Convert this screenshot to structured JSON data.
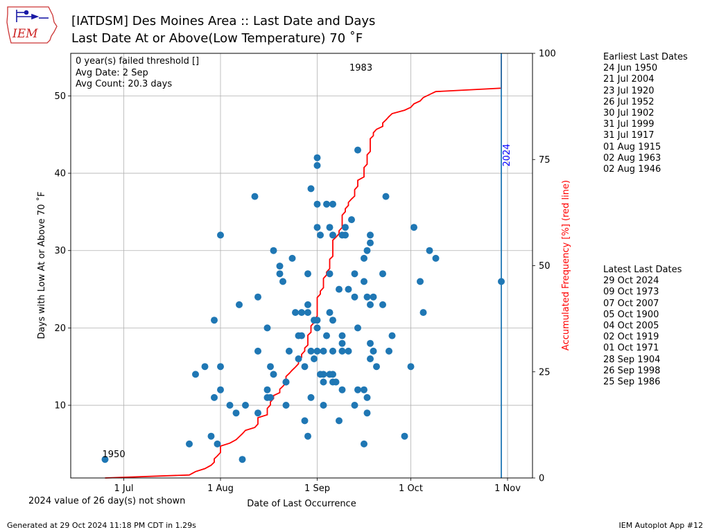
{
  "header": {
    "logo_text": "IEM",
    "title_line1": "[IATDSM] Des Moines Area :: Last Date and Days",
    "title_line2": "Last Date At or Above(Low Temperature) 70 ˚F"
  },
  "stats": {
    "failed": "0 year(s) failed threshold []",
    "avg_date": "Avg Date: 2 Sep",
    "avg_count": "Avg Count: 20.3 days"
  },
  "earliest": {
    "title": "Earliest Last Dates",
    "items": [
      "24 Jun 1950",
      "21 Jul 2004",
      "23 Jul 1920",
      "26 Jul 1952",
      "30 Jul 1902",
      "31 Jul 1999",
      "31 Jul 1917",
      "01 Aug 1915",
      "02 Aug 1963",
      "02 Aug 1946"
    ]
  },
  "latest": {
    "title": "Latest Last Dates",
    "items": [
      "29 Oct 2024",
      "09 Oct 1973",
      "07 Oct 2007",
      "05 Oct 1900",
      "04 Oct 2005",
      "02 Oct 1919",
      "01 Oct 1971",
      "28 Sep 1904",
      "26 Sep 1998",
      "25 Sep 1986"
    ]
  },
  "note_2024": "2024 value of 26 day(s) not shown",
  "footer": {
    "left": "Generated at 29 Oct 2024 11:18 PM CDT in 1.29s",
    "right": "IEM Autoplot App #12"
  },
  "chart_data": {
    "type": "scatter",
    "xlabel": "Date of Last Occurrence",
    "ylabel": "Days with Low At or Above 70 ˚F",
    "y2label": "Accumulated Frequency [%] (red line)",
    "x_ticks": [
      "1 Jul",
      "1 Aug",
      "1 Sep",
      "1 Oct",
      "1 Nov"
    ],
    "x_ticks_doy": [
      182,
      213,
      244,
      274,
      305
    ],
    "xlim_doy": [
      165,
      313
    ],
    "ylim": [
      0.6,
      55.5
    ],
    "y_ticks": [
      10,
      20,
      30,
      40,
      50
    ],
    "y2lim": [
      0,
      100
    ],
    "y2_ticks": [
      0,
      25,
      50,
      75,
      100
    ],
    "grid": true,
    "colors": {
      "points": "#1f77b4",
      "cdf": "#ff0000",
      "marker_2024": "#1f77b4",
      "marker_label": "#0000ff"
    },
    "annotations": [
      {
        "text": "1950",
        "doy": 176,
        "y": 3
      },
      {
        "text": "1983",
        "doy": 253,
        "y": 53
      }
    ],
    "marker_2024": {
      "label": "2024",
      "doy": 303,
      "y": 26
    },
    "points": [
      [
        176,
        3
      ],
      [
        203,
        5
      ],
      [
        205,
        14
      ],
      [
        208,
        15
      ],
      [
        210,
        6
      ],
      [
        211,
        21
      ],
      [
        211,
        11
      ],
      [
        212,
        5
      ],
      [
        213,
        15
      ],
      [
        213,
        12
      ],
      [
        213,
        32
      ],
      [
        216,
        10
      ],
      [
        218,
        9
      ],
      [
        219,
        23
      ],
      [
        220,
        3
      ],
      [
        221,
        10
      ],
      [
        224,
        37
      ],
      [
        225,
        9
      ],
      [
        225,
        17
      ],
      [
        225,
        24
      ],
      [
        228,
        20
      ],
      [
        228,
        12
      ],
      [
        228,
        11
      ],
      [
        229,
        11
      ],
      [
        229,
        15
      ],
      [
        230,
        14
      ],
      [
        230,
        30
      ],
      [
        232,
        28
      ],
      [
        232,
        27
      ],
      [
        233,
        26
      ],
      [
        234,
        13
      ],
      [
        234,
        13
      ],
      [
        234,
        10
      ],
      [
        235,
        17
      ],
      [
        236,
        29
      ],
      [
        237,
        22
      ],
      [
        238,
        16
      ],
      [
        238,
        19
      ],
      [
        239,
        19
      ],
      [
        239,
        22
      ],
      [
        240,
        15
      ],
      [
        240,
        8
      ],
      [
        241,
        6
      ],
      [
        241,
        27
      ],
      [
        241,
        22
      ],
      [
        241,
        23
      ],
      [
        242,
        17
      ],
      [
        242,
        11
      ],
      [
        242,
        38
      ],
      [
        243,
        21
      ],
      [
        243,
        16
      ],
      [
        244,
        21
      ],
      [
        244,
        42
      ],
      [
        244,
        41
      ],
      [
        244,
        36
      ],
      [
        244,
        33
      ],
      [
        244,
        20
      ],
      [
        244,
        17
      ],
      [
        245,
        32
      ],
      [
        245,
        14
      ],
      [
        246,
        17
      ],
      [
        246,
        14
      ],
      [
        246,
        13
      ],
      [
        246,
        10
      ],
      [
        247,
        19
      ],
      [
        247,
        36
      ],
      [
        248,
        33
      ],
      [
        248,
        27
      ],
      [
        248,
        22
      ],
      [
        248,
        14
      ],
      [
        249,
        21
      ],
      [
        249,
        36
      ],
      [
        249,
        32
      ],
      [
        249,
        17
      ],
      [
        249,
        14
      ],
      [
        249,
        13
      ],
      [
        250,
        13
      ],
      [
        251,
        8
      ],
      [
        251,
        25
      ],
      [
        252,
        32
      ],
      [
        252,
        19
      ],
      [
        252,
        18
      ],
      [
        252,
        17
      ],
      [
        252,
        12
      ],
      [
        253,
        32
      ],
      [
        253,
        33
      ],
      [
        254,
        25
      ],
      [
        254,
        17
      ],
      [
        255,
        34
      ],
      [
        256,
        27
      ],
      [
        256,
        24
      ],
      [
        256,
        10
      ],
      [
        257,
        43
      ],
      [
        257,
        20
      ],
      [
        257,
        12
      ],
      [
        259,
        29
      ],
      [
        259,
        26
      ],
      [
        259,
        12
      ],
      [
        259,
        5
      ],
      [
        260,
        30
      ],
      [
        260,
        24
      ],
      [
        260,
        11
      ],
      [
        260,
        9
      ],
      [
        261,
        32
      ],
      [
        261,
        31
      ],
      [
        261,
        23
      ],
      [
        261,
        18
      ],
      [
        261,
        16
      ],
      [
        262,
        24
      ],
      [
        262,
        17
      ],
      [
        263,
        15
      ],
      [
        265,
        27
      ],
      [
        265,
        23
      ],
      [
        266,
        37
      ],
      [
        267,
        17
      ],
      [
        268,
        19
      ],
      [
        272,
        6
      ],
      [
        274,
        15
      ],
      [
        275,
        33
      ],
      [
        277,
        26
      ],
      [
        278,
        22
      ],
      [
        280,
        30
      ],
      [
        282,
        29
      ]
    ],
    "cdf_points": [
      [
        176,
        0
      ],
      [
        203,
        0.7
      ],
      [
        205,
        1.5
      ],
      [
        208,
        2.2
      ],
      [
        210,
        3.0
      ],
      [
        211,
        3.7
      ],
      [
        211,
        4.5
      ],
      [
        212,
        5.2
      ],
      [
        213,
        6.0
      ],
      [
        213,
        6.7
      ],
      [
        213,
        7.5
      ],
      [
        216,
        8.2
      ],
      [
        218,
        9.0
      ],
      [
        219,
        9.7
      ],
      [
        220,
        10.4
      ],
      [
        221,
        11.2
      ],
      [
        224,
        11.9
      ],
      [
        225,
        12.7
      ],
      [
        225,
        13.4
      ],
      [
        225,
        14.2
      ],
      [
        228,
        14.9
      ],
      [
        228,
        15.7
      ],
      [
        228,
        16.4
      ],
      [
        229,
        17.2
      ],
      [
        229,
        17.9
      ],
      [
        230,
        18.7
      ],
      [
        230,
        19.4
      ],
      [
        232,
        20.1
      ],
      [
        232,
        20.9
      ],
      [
        233,
        21.6
      ],
      [
        234,
        22.4
      ],
      [
        234,
        23.1
      ],
      [
        234,
        23.9
      ],
      [
        235,
        24.6
      ],
      [
        236,
        25.4
      ],
      [
        237,
        26.1
      ],
      [
        238,
        26.9
      ],
      [
        238,
        27.6
      ],
      [
        239,
        28.4
      ],
      [
        239,
        29.1
      ],
      [
        240,
        29.9
      ],
      [
        240,
        30.6
      ],
      [
        241,
        31.3
      ],
      [
        241,
        32.1
      ],
      [
        241,
        32.8
      ],
      [
        241,
        33.6
      ],
      [
        242,
        34.3
      ],
      [
        242,
        35.1
      ],
      [
        242,
        35.8
      ],
      [
        243,
        36.6
      ],
      [
        243,
        37.3
      ],
      [
        244,
        38.1
      ],
      [
        244,
        38.8
      ],
      [
        244,
        39.6
      ],
      [
        244,
        40.3
      ],
      [
        244,
        41.0
      ],
      [
        244,
        41.8
      ],
      [
        244,
        42.5
      ],
      [
        245,
        43.3
      ],
      [
        245,
        44.0
      ],
      [
        246,
        44.8
      ],
      [
        246,
        45.5
      ],
      [
        246,
        46.3
      ],
      [
        246,
        47.0
      ],
      [
        247,
        47.8
      ],
      [
        247,
        48.5
      ],
      [
        248,
        49.3
      ],
      [
        248,
        50.0
      ],
      [
        248,
        50.7
      ],
      [
        248,
        51.5
      ],
      [
        249,
        52.2
      ],
      [
        249,
        53.0
      ],
      [
        249,
        53.7
      ],
      [
        249,
        54.5
      ],
      [
        249,
        55.2
      ],
      [
        249,
        56.0
      ],
      [
        250,
        56.7
      ],
      [
        251,
        57.5
      ],
      [
        251,
        58.2
      ],
      [
        252,
        59.0
      ],
      [
        252,
        59.7
      ],
      [
        252,
        60.4
      ],
      [
        252,
        61.2
      ],
      [
        252,
        61.9
      ],
      [
        253,
        62.7
      ],
      [
        253,
        63.4
      ],
      [
        254,
        64.2
      ],
      [
        254,
        64.9
      ],
      [
        255,
        65.7
      ],
      [
        256,
        66.4
      ],
      [
        256,
        67.2
      ],
      [
        256,
        67.9
      ],
      [
        257,
        68.7
      ],
      [
        257,
        69.4
      ],
      [
        257,
        70.1
      ],
      [
        259,
        70.9
      ],
      [
        259,
        71.6
      ],
      [
        259,
        72.4
      ],
      [
        259,
        73.1
      ],
      [
        260,
        73.9
      ],
      [
        260,
        74.6
      ],
      [
        260,
        75.4
      ],
      [
        260,
        76.1
      ],
      [
        261,
        76.9
      ],
      [
        261,
        77.6
      ],
      [
        261,
        78.4
      ],
      [
        261,
        79.1
      ],
      [
        261,
        79.9
      ],
      [
        262,
        80.6
      ],
      [
        262,
        81.3
      ],
      [
        263,
        82.1
      ],
      [
        265,
        82.8
      ],
      [
        265,
        83.6
      ],
      [
        266,
        84.3
      ],
      [
        267,
        85.1
      ],
      [
        268,
        85.8
      ],
      [
        272,
        86.6
      ],
      [
        274,
        87.3
      ],
      [
        275,
        88.1
      ],
      [
        277,
        88.8
      ],
      [
        278,
        89.6
      ],
      [
        280,
        90.3
      ],
      [
        282,
        91.0
      ],
      [
        303,
        91.8
      ]
    ]
  }
}
